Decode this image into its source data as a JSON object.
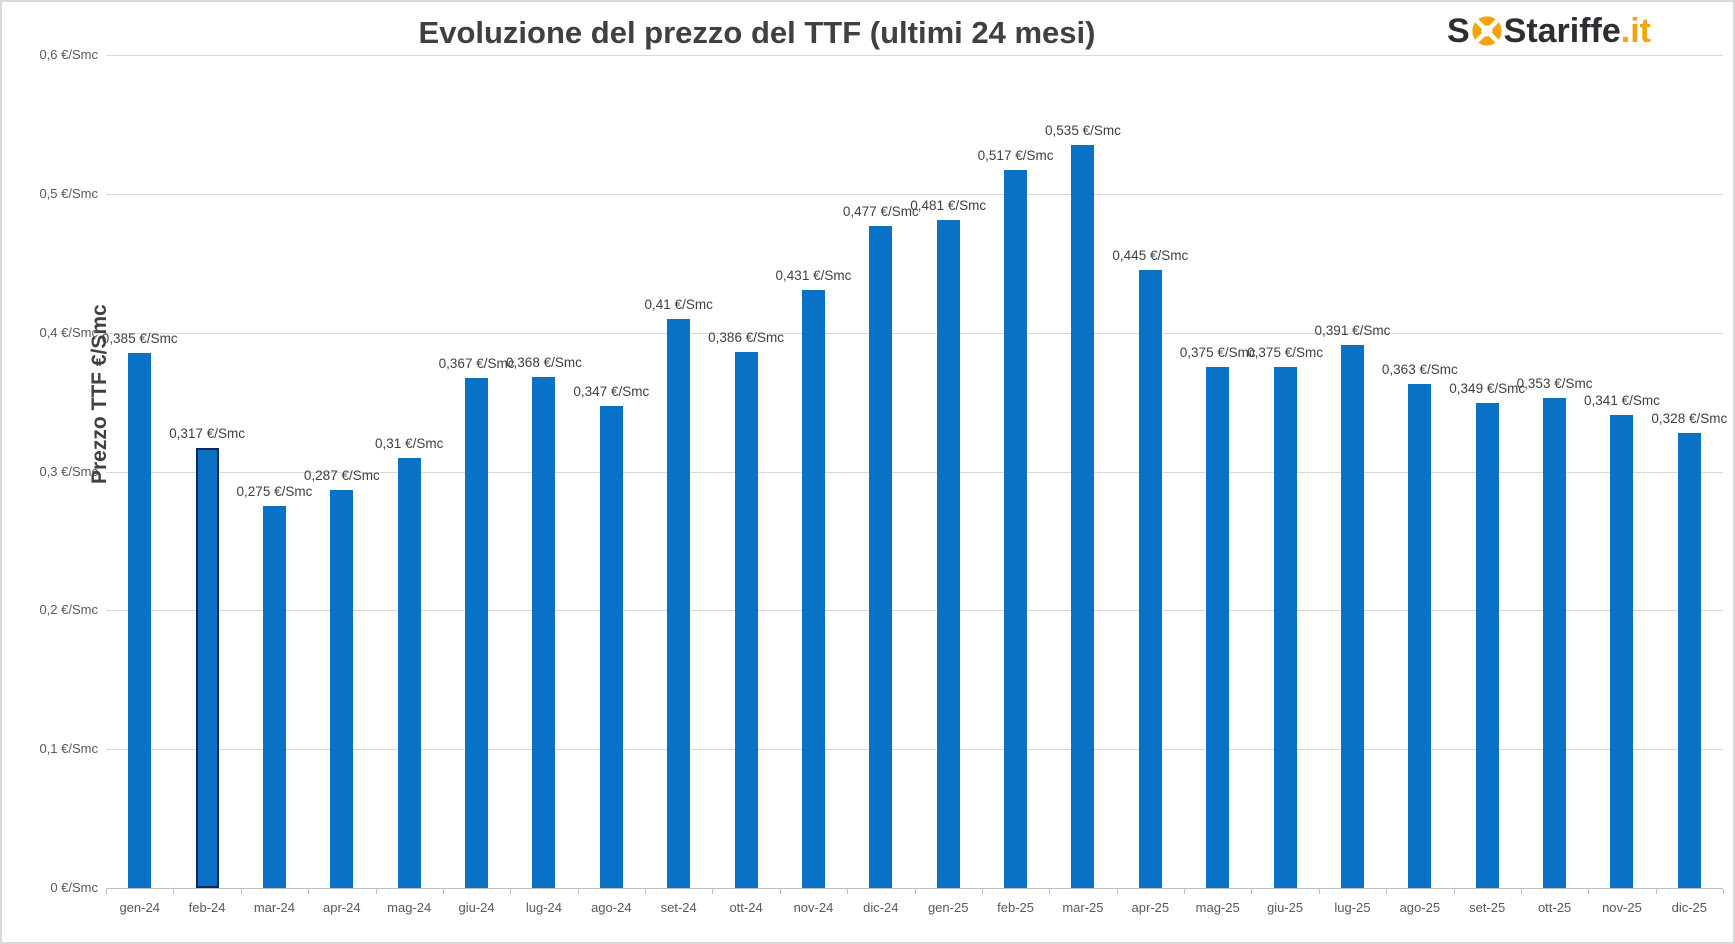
{
  "page": {
    "background": "#FFFFFF",
    "frame_border_color": "#D9D9D9"
  },
  "header": {
    "title": "Evoluzione del prezzo del TTF (ultimi 24 mesi)"
  },
  "logo": {
    "part_s1": "S",
    "part_s2": "S",
    "part_tariffe": "tariffe",
    "part_it": ".it",
    "text_color": "#2E2D33",
    "accent_color": "#F2A50C",
    "lifebuoy_icon": "lifebuoy-icon"
  },
  "chart_data": {
    "type": "bar",
    "title": "Evoluzione del prezzo del TTF (ultimi 24 mesi)",
    "xlabel": "",
    "ylabel": "Prezzo TTF €/Smc",
    "ylim": [
      0,
      0.6
    ],
    "grid": "horizontal",
    "legend": "none",
    "bar_color": "#0A72C6",
    "highlighted_index": 1,
    "highlight_border_color": "#17255C",
    "y_ticks": [
      0,
      0.1,
      0.2,
      0.3,
      0.4,
      0.5,
      0.6
    ],
    "y_tick_labels": [
      "0 €/Smc",
      "0,1 €/Smc",
      "0,2 €/Smc",
      "0,3 €/Smc",
      "0,4 €/Smc",
      "0,5 €/Smc",
      "0,6 €/Smc"
    ],
    "categories": [
      "gen-24",
      "feb-24",
      "mar-24",
      "apr-24",
      "mag-24",
      "giu-24",
      "lug-24",
      "ago-24",
      "set-24",
      "ott-24",
      "nov-24",
      "dic-24",
      "gen-25",
      "feb-25",
      "mar-25",
      "apr-25",
      "mag-25",
      "giu-25",
      "lug-25",
      "ago-25",
      "set-25",
      "ott-25",
      "nov-25",
      "dic-25"
    ],
    "values": [
      0.385,
      0.317,
      0.275,
      0.287,
      0.31,
      0.367,
      0.368,
      0.347,
      0.41,
      0.386,
      0.431,
      0.477,
      0.481,
      0.517,
      0.535,
      0.445,
      0.375,
      0.375,
      0.391,
      0.363,
      0.349,
      0.353,
      0.341,
      0.328
    ],
    "data_labels": [
      "0,385 €/Smc",
      "0,317 €/Smc",
      "0,275 €/Smc",
      "0,287 €/Smc",
      "0,31 €/Smc",
      "0,367 €/Smc",
      "0,368 €/Smc",
      "0,347 €/Smc",
      "0,41 €/Smc",
      "0,386 €/Smc",
      "0,431 €/Smc",
      "0,477 €/Smc",
      "0,481 €/Smc",
      "0,517 €/Smc",
      "0,535 €/Smc",
      "0,445 €/Smc",
      "0,375 €/Smc",
      "0,375 €/Smc",
      "0,391 €/Smc",
      "0,363 €/Smc",
      "0,349 €/Smc",
      "0,353 €/Smc",
      "0,341 €/Smc",
      "0,328 €/Smc"
    ]
  }
}
